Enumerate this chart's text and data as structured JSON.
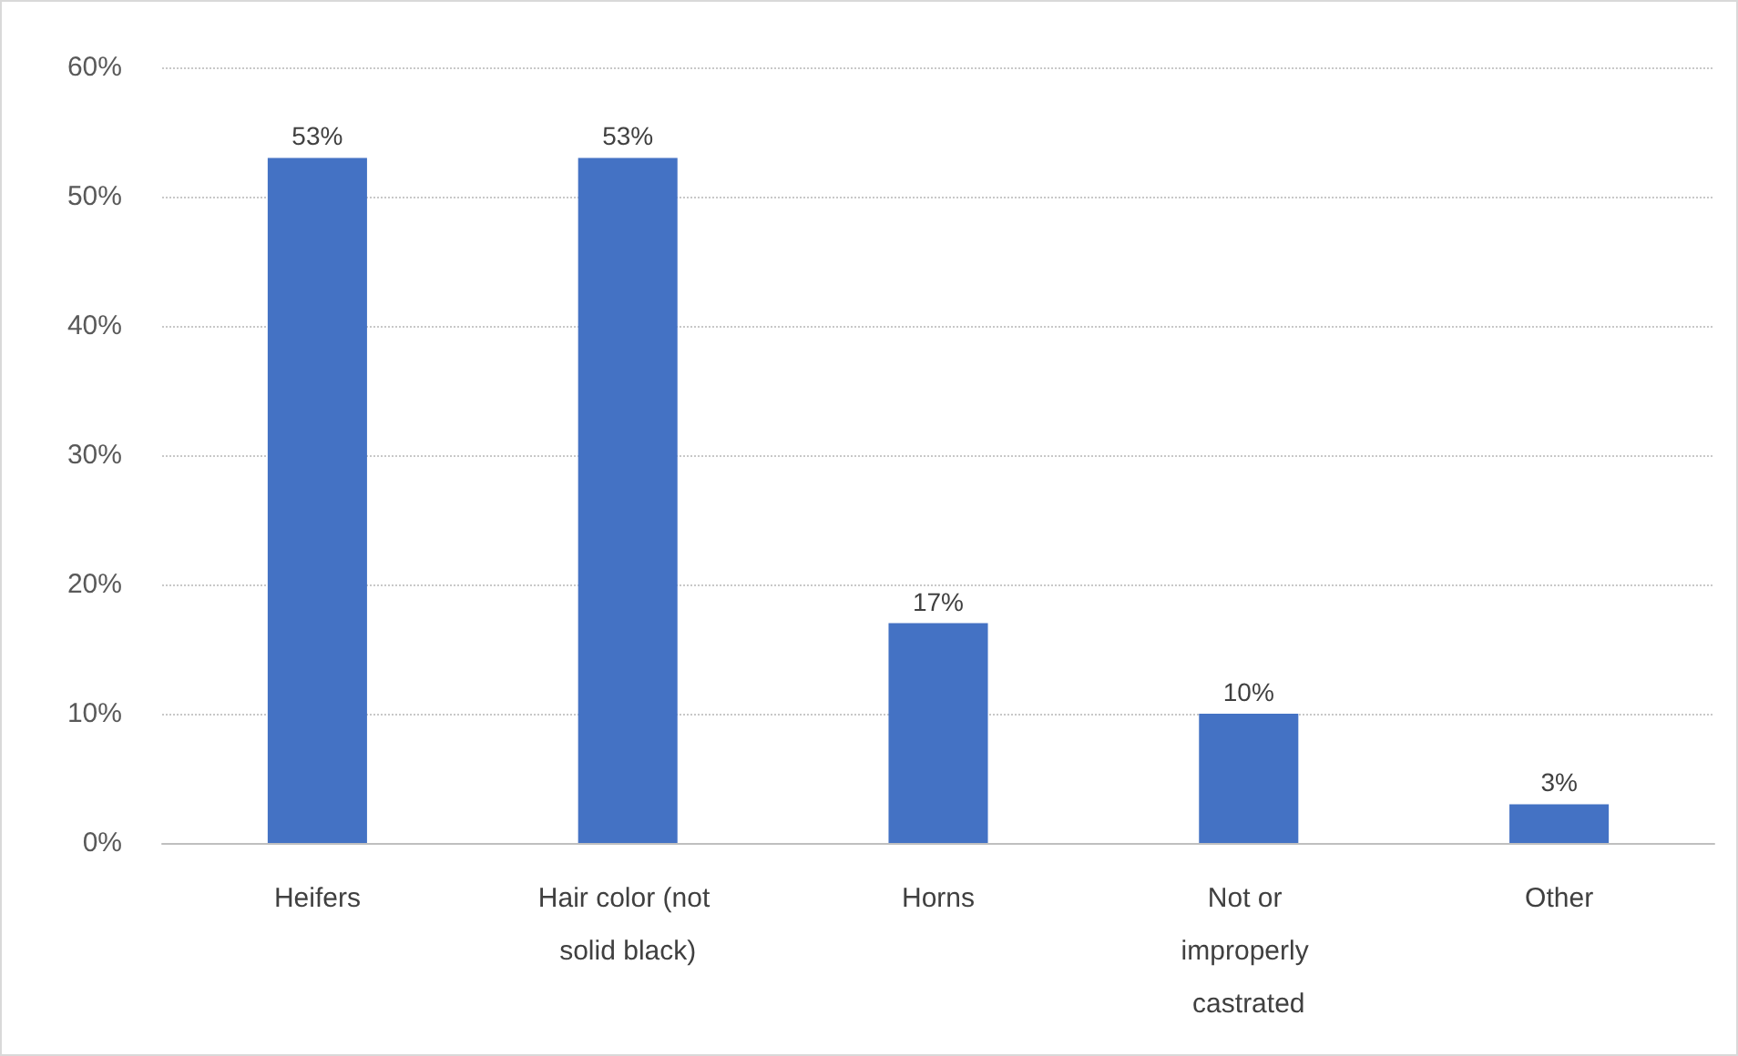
{
  "chart_data": {
    "type": "bar",
    "categories": [
      "Heifers",
      "Hair color (not solid black)",
      "Horns",
      "Not or improperly castrated",
      "Other"
    ],
    "values": [
      53,
      53,
      17,
      10,
      3
    ],
    "value_labels": [
      "53%",
      "53%",
      "17%",
      "10%",
      "3%"
    ],
    "color": "#4472c4",
    "ylim": [
      0,
      60
    ],
    "yticks": [
      {
        "value": 0,
        "label": "0%"
      },
      {
        "value": 10,
        "label": "10%"
      },
      {
        "value": 20,
        "label": "20%"
      },
      {
        "value": 30,
        "label": "30%"
      },
      {
        "value": 40,
        "label": "40%"
      },
      {
        "value": 50,
        "label": "50%"
      },
      {
        "value": 60,
        "label": "60%"
      }
    ],
    "grid": "y"
  }
}
